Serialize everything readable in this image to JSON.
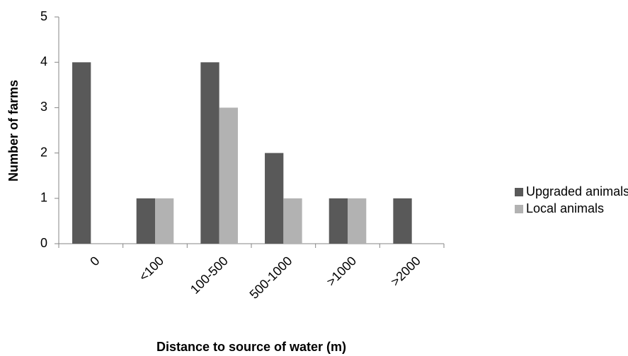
{
  "chart_data": {
    "type": "bar",
    "categories": [
      "0",
      "<100",
      "100-500",
      "500-1000",
      ">1000",
      ">2000"
    ],
    "series": [
      {
        "name": "Upgraded animals",
        "color": "#595959",
        "values": [
          4,
          1,
          4,
          2,
          1,
          1
        ]
      },
      {
        "name": "Local animals",
        "color": "#b2b2b2",
        "values": [
          0,
          1,
          3,
          1,
          1,
          0
        ]
      }
    ],
    "x_label": "Distance to source of water (m)",
    "y_label": "Number of farms",
    "ylim": [
      0,
      5
    ],
    "yticks": [
      0,
      1,
      2,
      3,
      4,
      5
    ],
    "grid": false,
    "legend": "right"
  }
}
